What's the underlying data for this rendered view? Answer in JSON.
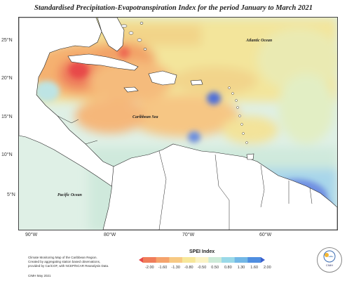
{
  "title": "Standardised Precipitation-Evapotranspiration Index for the period January to March 2021",
  "map": {
    "lat_labels": [
      "25°N",
      "20°N",
      "15°N",
      "10°N",
      "5°N"
    ],
    "lon_labels": [
      "90°W",
      "80°W",
      "70°W",
      "60°W"
    ],
    "place_labels": {
      "atlantic": "Atlantic Ocean",
      "caribbean": "Caribbean Sea",
      "pacific": "Pacific Ocean"
    }
  },
  "footnote": {
    "line1": "Climate Monitoring Map of the Caribbean Region.",
    "line2": "Created by aggregating station based observations,",
    "line3": "provided by CariCOF, with NCEP/NCAR Reanalysis Data."
  },
  "credit": "CIMH May 2021",
  "legend": {
    "title": "SPEI Index",
    "ticks": [
      "-2.00",
      "-1.60",
      "-1.30",
      "-0.80",
      "-0.50",
      "0.50",
      "0.80",
      "1.30",
      "1.60",
      "2.00"
    ],
    "colors": [
      "#e8494a",
      "#f07d5a",
      "#f5a36c",
      "#f7c983",
      "#f7e79a",
      "#fbf3c5",
      "#cdebd8",
      "#9ad9e8",
      "#73b8e6",
      "#4f8ee0",
      "#3a5fcd"
    ]
  },
  "logo": {
    "text": "CIMH"
  },
  "colors": {
    "land": "#ffffff",
    "drought_strong": "#e8494a",
    "wet_strong": "#4f6fd8"
  }
}
